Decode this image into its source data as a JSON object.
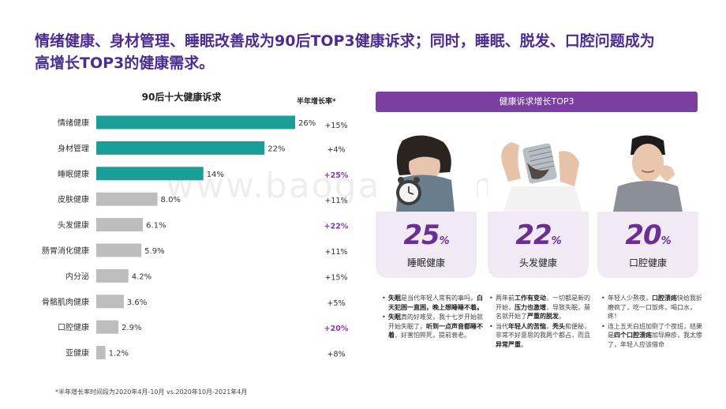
{
  "headline": "情绪健康、身材管理、睡眠改善成为90后TOP3健康诉求；同时，睡眠、脱发、口腔问题成为高增长TOP3的健康需求。",
  "watermark": "www.baogao.com",
  "chart_data": {
    "type": "bar",
    "orientation": "horizontal",
    "title": "90后十大健康诉求",
    "growth_header": "半年增长率*",
    "categories": [
      "情绪健康",
      "身材管理",
      "睡眠健康",
      "皮肤健康",
      "头发健康",
      "肠胃消化健康",
      "内分泌",
      "骨骼肌肉健康",
      "口腔健康",
      "亚健康"
    ],
    "values": [
      26,
      22,
      14,
      8.0,
      6.1,
      5.9,
      4.2,
      3.6,
      2.9,
      1.2
    ],
    "value_labels": [
      "26%",
      "22%",
      "14%",
      "8.0%",
      "6.1%",
      "5.9%",
      "4.2%",
      "3.6%",
      "2.9%",
      "1.2%"
    ],
    "growth": [
      "+15%",
      "+4%",
      "+25%",
      "+11%",
      "+22%",
      "+11%",
      "+15%",
      "+5%",
      "+20%",
      "+8%"
    ],
    "highlight_top": [
      0,
      1,
      2
    ],
    "highlight_growth": [
      2,
      4,
      8
    ],
    "colors": {
      "top": "#1a9e97",
      "other": "#bdbdbd",
      "growth_highlight": "#7a3fa0",
      "growth_normal": "#333333"
    }
  },
  "panel": {
    "banner": "健康诉求增长TOP3",
    "cards": [
      {
        "pct": "25",
        "sym": "%",
        "name": "睡眠健康",
        "icon": "alarm-clock-sleep-photo",
        "bullets": [
          [
            {
              "t": "失眠",
              "b": true
            },
            {
              "t": "是当代年轻人常有的事吗，",
              "b": false
            },
            {
              "t": "白天犯困一直困，晚上想睡睡不着。",
              "b": true
            }
          ],
          [
            {
              "t": "失眠",
              "b": true
            },
            {
              "t": "真的好难受，我十七岁开始就开始失眠了，",
              "b": false
            },
            {
              "t": "听到一点声音都睡不着",
              "b": true
            },
            {
              "t": "，好害怕猝死，提前衰老。",
              "b": false
            }
          ]
        ]
      },
      {
        "pct": "22",
        "sym": "%",
        "name": "头发健康",
        "icon": "hair-loss-comb-photo",
        "bullets": [
          [
            {
              "t": "两年前",
              "b": false
            },
            {
              "t": "工作有变动",
              "b": true
            },
            {
              "t": "，一切都是新的开始，",
              "b": false
            },
            {
              "t": "压力也激增",
              "b": true
            },
            {
              "t": "，导致失眠，莫名就开始了",
              "b": false
            },
            {
              "t": "严重的脱发",
              "b": true
            },
            {
              "t": "。",
              "b": false
            }
          ],
          [
            {
              "t": "当代",
              "b": false
            },
            {
              "t": "年轻人的苦恼",
              "b": true
            },
            {
              "t": "，",
              "b": false
            },
            {
              "t": "秃头",
              "b": true
            },
            {
              "t": "和便秘，非常不好意思的我两个都占，而且",
              "b": false
            },
            {
              "t": "异常严重",
              "b": true
            },
            {
              "t": "。",
              "b": false
            }
          ]
        ]
      },
      {
        "pct": "20",
        "sym": "%",
        "name": "口腔健康",
        "icon": "toothache-man-photo",
        "bullets": [
          [
            {
              "t": "年轻人少熬夜，",
              "b": false
            },
            {
              "t": "口腔溃疡",
              "b": true
            },
            {
              "t": "快给我折磨疯了，吃一口饭疼，喝口水，疼！",
              "b": false
            }
          ],
          [
            {
              "t": "连上五天白班加倒了个夜班，结果是",
              "b": false
            },
            {
              "t": "四个口腔溃疡",
              "b": true
            },
            {
              "t": "加导麻疹，我太惨了，年轻人应该借命",
              "b": false
            }
          ]
        ]
      }
    ]
  },
  "footnote": "*半年增长率时间段为2020年4月-10月 vs.2020年10月-2021年4月"
}
